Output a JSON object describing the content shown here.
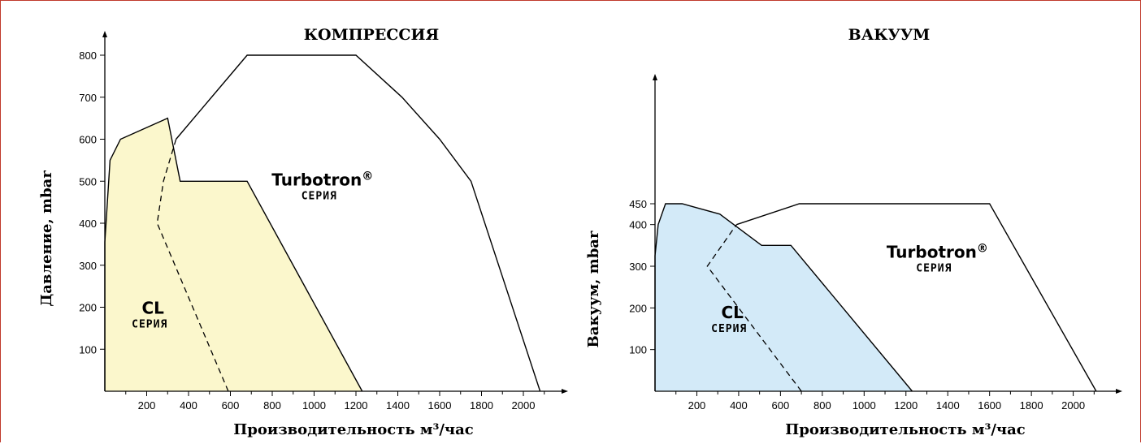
{
  "chart_data": [
    {
      "type": "area",
      "title": "КОМПРЕССИЯ",
      "xlabel": "Производительность м³/час",
      "ylabel": "Давление, mbar",
      "xlim": [
        0,
        2200
      ],
      "ylim": [
        0,
        820
      ],
      "x_ticks": [
        200,
        400,
        600,
        800,
        1000,
        1200,
        1400,
        1600,
        1800,
        2000
      ],
      "y_ticks": [
        100,
        200,
        300,
        400,
        500,
        600,
        700,
        800
      ],
      "y_tick_labels": [
        "100",
        "200",
        "300",
        "400",
        "500",
        "600",
        "700",
        "800"
      ],
      "series": [
        {
          "name": "CL",
          "sublabel": "СЕРИЯ",
          "fill": "#fbf7cc",
          "label_at": [
            230,
            185
          ],
          "points": [
            [
              0,
              0
            ],
            [
              0,
              355
            ],
            [
              25,
              550
            ],
            [
              75,
              600
            ],
            [
              300,
              650
            ],
            [
              360,
              500
            ],
            [
              680,
              500
            ],
            [
              1230,
              0
            ]
          ]
        },
        {
          "name": "Turbotron®",
          "sublabel": "СЕРИЯ",
          "fill": "none",
          "label_at": [
            1040,
            490
          ],
          "points": [
            [
              340,
              600
            ],
            [
              680,
              800
            ],
            [
              1200,
              800
            ],
            [
              1420,
              700
            ],
            [
              1600,
              600
            ],
            [
              1750,
              500
            ],
            [
              2080,
              0
            ]
          ]
        }
      ],
      "boundary_dashed": [
        [
          590,
          0
        ],
        [
          250,
          400
        ],
        [
          280,
          500
        ],
        [
          340,
          600
        ]
      ]
    },
    {
      "type": "area",
      "title": "ВАКУУМ",
      "xlabel": "Производительность м³/час",
      "ylabel": "Вакуум, mbar",
      "xlim": [
        0,
        2200
      ],
      "ylim": [
        0,
        750
      ],
      "x_ticks": [
        200,
        400,
        600,
        800,
        1000,
        1200,
        1400,
        1600,
        1800,
        2000
      ],
      "y_ticks": [
        100,
        200,
        300,
        400,
        450
      ],
      "y_tick_labels": [
        "100",
        "200",
        "300",
        "400",
        "450"
      ],
      "series": [
        {
          "name": "CL",
          "sublabel": "СЕРИЯ",
          "fill": "#d3eaf8",
          "label_at": [
            370,
            175
          ],
          "points": [
            [
              0,
              0
            ],
            [
              0,
              325
            ],
            [
              15,
              400
            ],
            [
              50,
              450
            ],
            [
              130,
              450
            ],
            [
              310,
              425
            ],
            [
              510,
              350
            ],
            [
              650,
              350
            ],
            [
              1230,
              0
            ]
          ]
        },
        {
          "name": "Turbotron®",
          "sublabel": "СЕРИЯ",
          "fill": "none",
          "label_at": [
            1350,
            320
          ],
          "points": [
            [
              390,
              400
            ],
            [
              690,
              450
            ],
            [
              1600,
              450
            ],
            [
              2110,
              0
            ]
          ]
        }
      ],
      "boundary_dashed": [
        [
          700,
          0
        ],
        [
          250,
          300
        ],
        [
          390,
          400
        ]
      ]
    }
  ]
}
